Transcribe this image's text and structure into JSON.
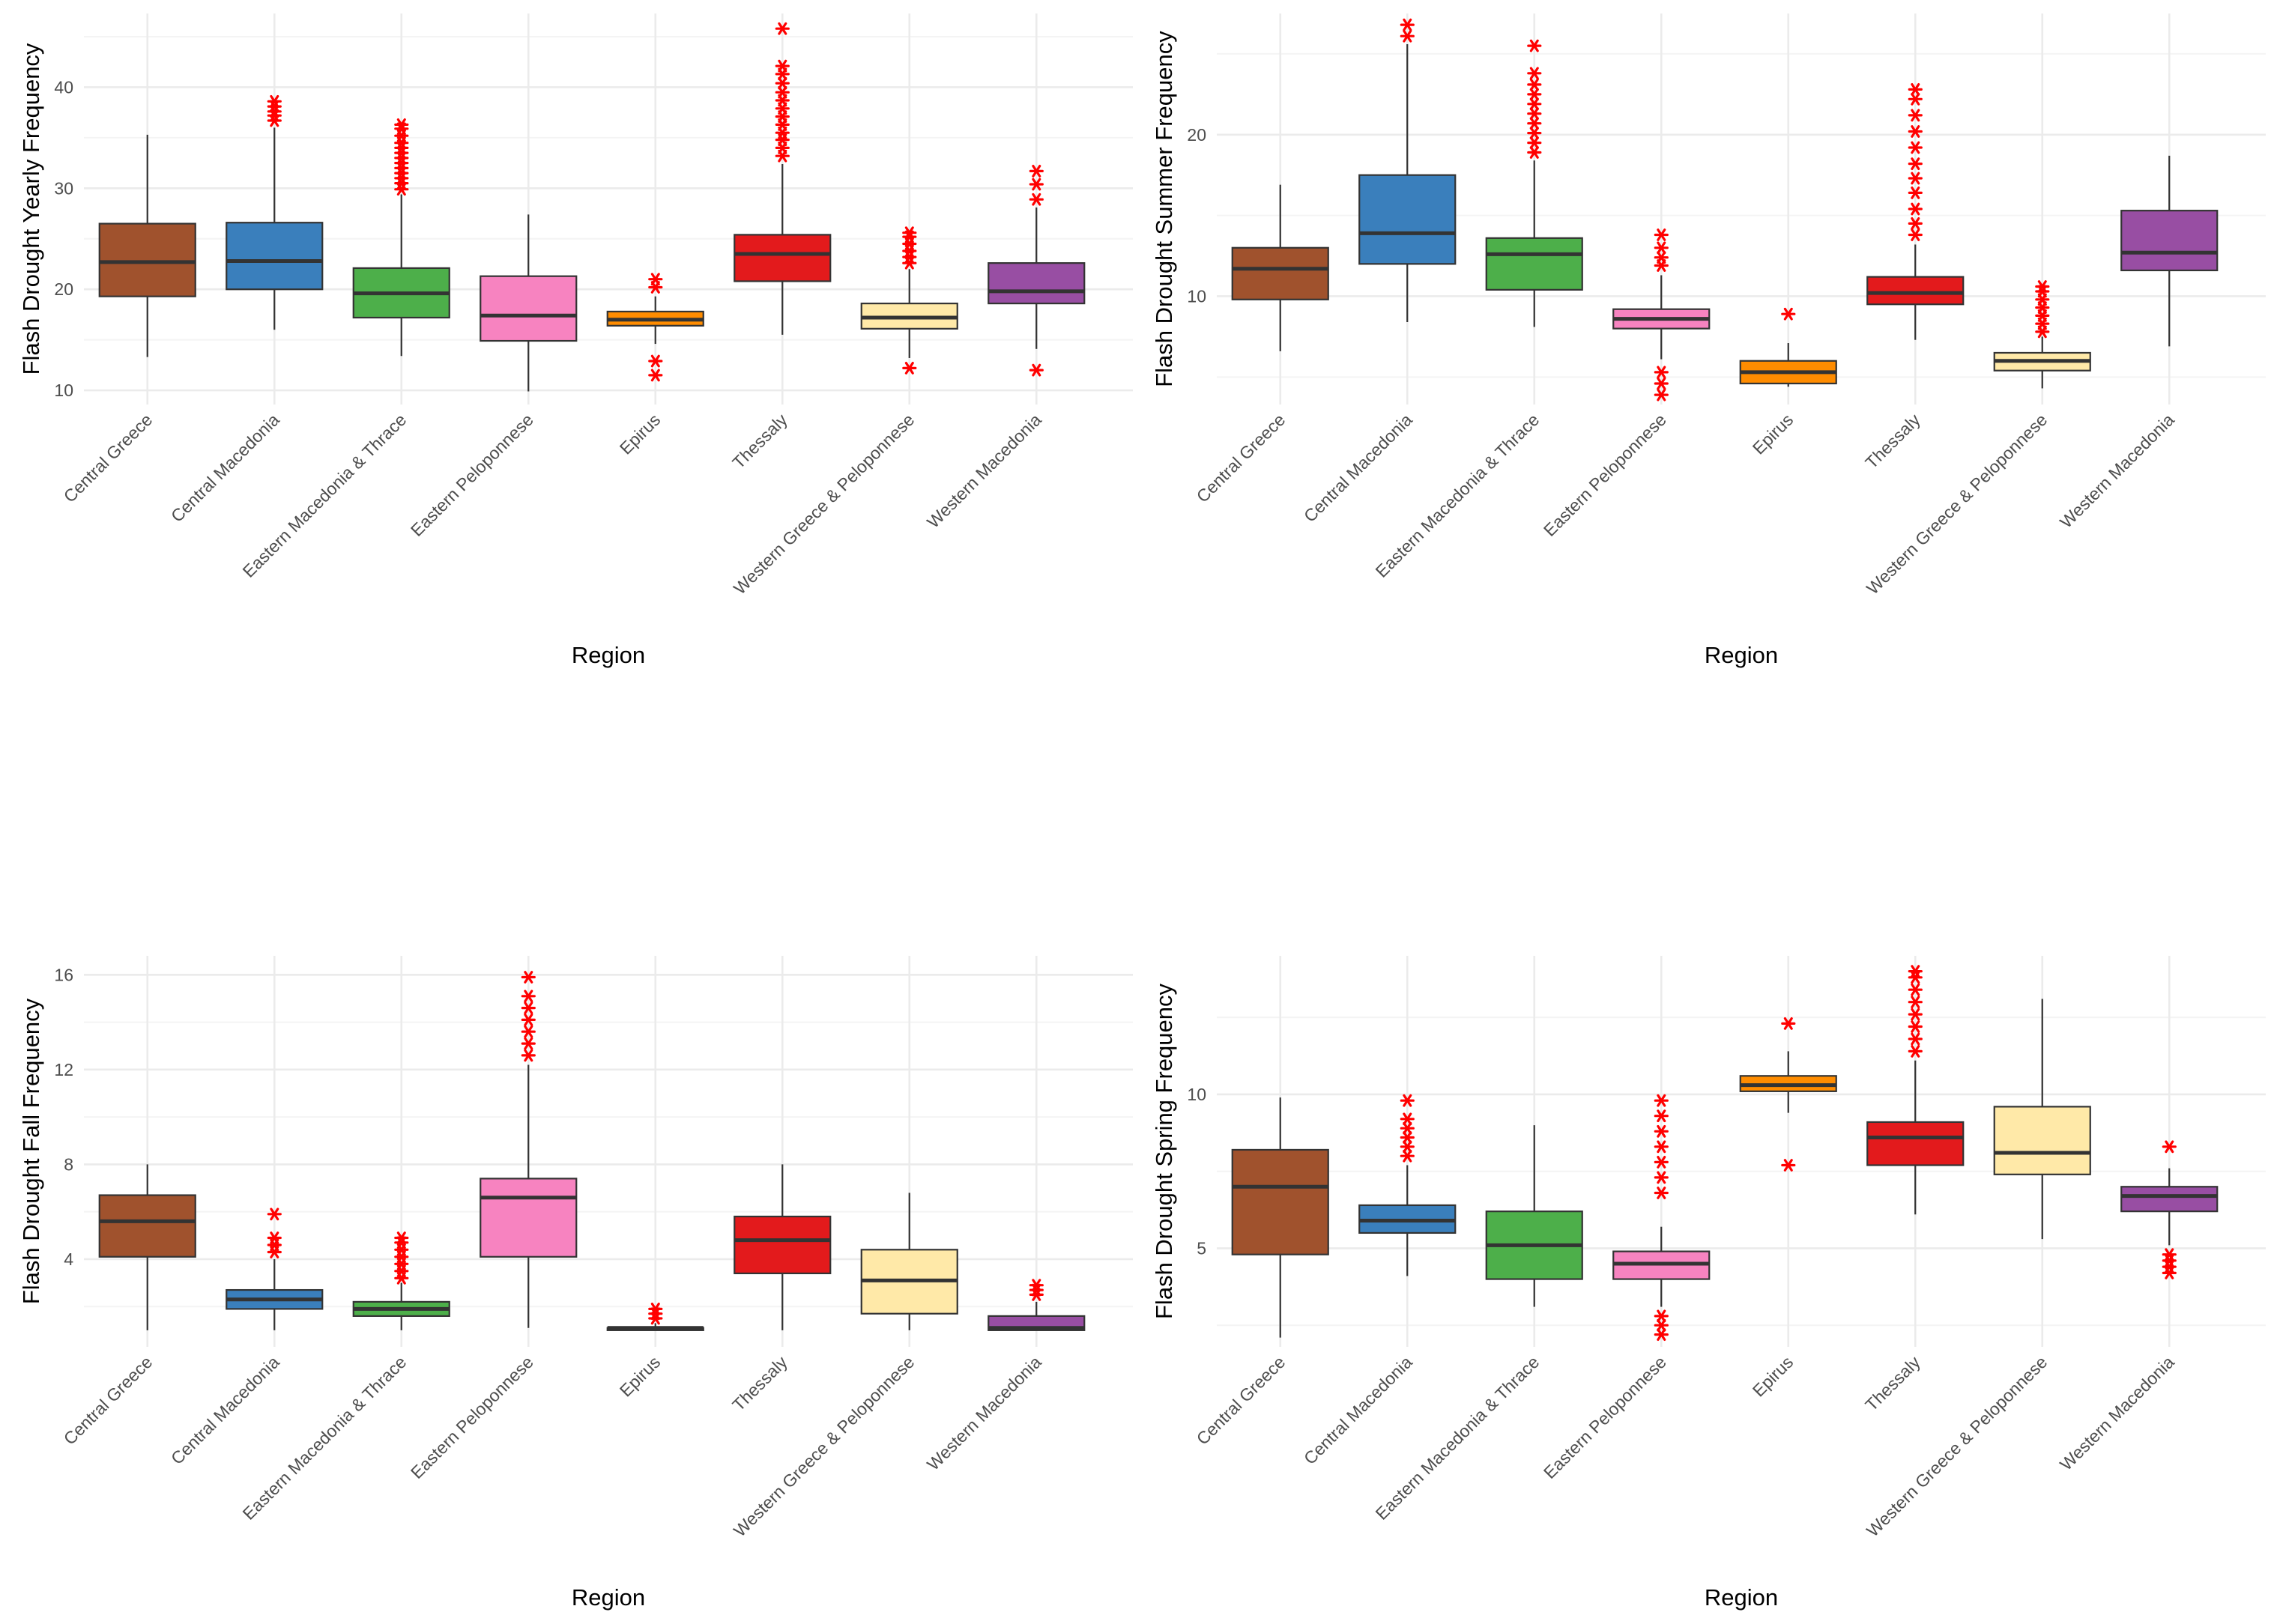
{
  "colors": {
    "outlier": "#ff0000",
    "grid_major": "#ebebeb",
    "grid_minor": "#f4f4f4",
    "box_line": "#333333",
    "fills": [
      "#a0522d",
      "#3a7fbc",
      "#4daf4a",
      "#f783c0",
      "#ff8c00",
      "#e31a1c",
      "#ffe9a8",
      "#984ea3"
    ]
  },
  "chart_data": [
    {
      "type": "box",
      "title": "",
      "xlabel": "Region",
      "ylabel": "Flash Drought Yearly Frequency",
      "ylim": [
        8.6,
        47.3
      ],
      "yticks": [
        10,
        20,
        30,
        40
      ],
      "tick_labels": [
        "10",
        "20",
        "30",
        "40"
      ],
      "categories": [
        "Central Greece",
        "Central Macedonia",
        "Eastern Macedonia & Thrace",
        "Eastern Peloponnese",
        "Epirus",
        "Thessaly",
        "Western Greece & Peloponnese",
        "Western Macedonia"
      ],
      "series": [
        {
          "name": "Central Greece",
          "whisker_low": 13.3,
          "q1": 19.3,
          "median": 22.7,
          "q3": 26.5,
          "whisker_high": 35.3,
          "outliers": []
        },
        {
          "name": "Central Macedonia",
          "whisker_low": 16,
          "q1": 20,
          "median": 22.8,
          "q3": 26.6,
          "whisker_high": 36,
          "outliers": [
            36.7,
            37.2,
            37.6,
            38.1,
            38.6
          ]
        },
        {
          "name": "Eastern Macedonia & Thrace",
          "whisker_low": 13.4,
          "q1": 17.2,
          "median": 19.6,
          "q3": 22.1,
          "whisker_high": 29.4,
          "outliers": [
            29.9,
            30.5,
            31,
            31.5,
            32,
            32.5,
            33,
            33.5,
            34,
            34.5,
            35.2,
            35.9,
            36.3
          ]
        },
        {
          "name": "Eastern Peloponnese",
          "whisker_low": 9.9,
          "q1": 14.9,
          "median": 17.4,
          "q3": 21.3,
          "whisker_high": 27.4,
          "outliers": []
        },
        {
          "name": "Epirus",
          "whisker_low": 14.6,
          "q1": 16.4,
          "median": 17,
          "q3": 17.8,
          "whisker_high": 19.3,
          "outliers": [
            11.5,
            12.9,
            20.2,
            21
          ]
        },
        {
          "name": "Thessaly",
          "whisker_low": 15.5,
          "q1": 20.8,
          "median": 23.5,
          "q3": 25.4,
          "whisker_high": 32.4,
          "outliers": [
            33.2,
            34,
            34.8,
            35.5,
            36.3,
            37.1,
            37.9,
            38.7,
            39.5,
            40.4,
            41.3,
            42.1,
            45.8
          ]
        },
        {
          "name": "Western Greece & Peloponnese",
          "whisker_low": 13.2,
          "q1": 16.1,
          "median": 17.2,
          "q3": 18.6,
          "whisker_high": 22,
          "outliers": [
            12.2,
            22.6,
            23.2,
            23.8,
            24.5,
            25.2,
            25.6
          ]
        },
        {
          "name": "Western Macedonia",
          "whisker_low": 14.1,
          "q1": 18.6,
          "median": 19.8,
          "q3": 22.6,
          "whisker_high": 28.1,
          "outliers": [
            12,
            28.9,
            30.4,
            31.7
          ]
        }
      ]
    },
    {
      "type": "box",
      "title": "",
      "xlabel": "Region",
      "ylabel": "Flash Drought Summer Frequency",
      "ylim": [
        3.3,
        27.5
      ],
      "yticks": [
        10,
        20
      ],
      "tick_labels": [
        "10",
        "20"
      ],
      "categories": [
        "Central Greece",
        "Central Macedonia",
        "Eastern Macedonia & Thrace",
        "Eastern Peloponnese",
        "Epirus",
        "Thessaly",
        "Western Greece & Peloponnese",
        "Western Macedonia"
      ],
      "series": [
        {
          "name": "Central Greece",
          "whisker_low": 6.6,
          "q1": 9.8,
          "median": 11.7,
          "q3": 13,
          "whisker_high": 16.9,
          "outliers": []
        },
        {
          "name": "Central Macedonia",
          "whisker_low": 8.4,
          "q1": 12,
          "median": 13.9,
          "q3": 17.5,
          "whisker_high": 25.6,
          "outliers": [
            26.1,
            26.8
          ]
        },
        {
          "name": "Eastern Macedonia & Thrace",
          "whisker_low": 8.1,
          "q1": 10.4,
          "median": 12.6,
          "q3": 13.6,
          "whisker_high": 18.4,
          "outliers": [
            18.9,
            19.5,
            20.1,
            20.7,
            21.3,
            21.9,
            22.5,
            23.1,
            23.8,
            25.5
          ]
        },
        {
          "name": "Eastern Peloponnese",
          "whisker_low": 6.1,
          "q1": 8,
          "median": 8.6,
          "q3": 9.2,
          "whisker_high": 11.3,
          "outliers": [
            3.9,
            4.6,
            5.3,
            11.9,
            12.4,
            13,
            13.8
          ]
        },
        {
          "name": "Epirus",
          "whisker_low": 4.4,
          "q1": 4.6,
          "median": 5.3,
          "q3": 6,
          "whisker_high": 7.1,
          "outliers": [
            8.9
          ]
        },
        {
          "name": "Thessaly",
          "whisker_low": 7.3,
          "q1": 9.5,
          "median": 10.2,
          "q3": 11.2,
          "whisker_high": 13.2,
          "outliers": [
            13.8,
            14.5,
            15.4,
            16.4,
            17.3,
            18.2,
            19.2,
            20.2,
            21.2,
            22.2,
            22.8
          ]
        },
        {
          "name": "Western Greece & Peloponnese",
          "whisker_low": 4.3,
          "q1": 5.4,
          "median": 6,
          "q3": 6.5,
          "whisker_high": 7.5,
          "outliers": [
            7.8,
            8.3,
            8.8,
            9.3,
            9.8,
            10.3,
            10.6
          ]
        },
        {
          "name": "Western Macedonia",
          "whisker_low": 6.9,
          "q1": 11.6,
          "median": 12.7,
          "q3": 15.3,
          "whisker_high": 18.7,
          "outliers": []
        }
      ]
    },
    {
      "type": "box",
      "title": "",
      "xlabel": "Region",
      "ylabel": "Flash Drought Fall Frequency",
      "ylim": [
        0.3,
        16.8
      ],
      "yticks": [
        4,
        8,
        12,
        16
      ],
      "tick_labels": [
        "4",
        "8",
        "12",
        "16"
      ],
      "categories": [
        "Central Greece",
        "Central Macedonia",
        "Eastern Macedonia & Thrace",
        "Eastern Peloponnese",
        "Epirus",
        "Thessaly",
        "Western Greece & Peloponnese",
        "Western Macedonia"
      ],
      "series": [
        {
          "name": "Central Greece",
          "whisker_low": 1,
          "q1": 4.1,
          "median": 5.6,
          "q3": 6.7,
          "whisker_high": 8,
          "outliers": []
        },
        {
          "name": "Central Macedonia",
          "whisker_low": 1,
          "q1": 1.9,
          "median": 2.3,
          "q3": 2.7,
          "whisker_high": 4,
          "outliers": [
            4.3,
            4.6,
            4.9,
            5.9
          ]
        },
        {
          "name": "Eastern Macedonia & Thrace",
          "whisker_low": 1,
          "q1": 1.6,
          "median": 1.9,
          "q3": 2.2,
          "whisker_high": 3,
          "outliers": [
            3.2,
            3.5,
            3.8,
            4.1,
            4.4,
            4.7,
            4.9
          ]
        },
        {
          "name": "Eastern Peloponnese",
          "whisker_low": 1.1,
          "q1": 4.1,
          "median": 6.6,
          "q3": 7.4,
          "whisker_high": 12.2,
          "outliers": [
            12.6,
            13.1,
            13.6,
            14.1,
            14.6,
            15.1,
            15.9
          ]
        },
        {
          "name": "Epirus",
          "whisker_low": 1,
          "q1": 1,
          "median": 1.1,
          "q3": 1.1,
          "whisker_high": 1.3,
          "outliers": [
            1.5,
            1.7,
            1.9
          ]
        },
        {
          "name": "Thessaly",
          "whisker_low": 1,
          "q1": 3.4,
          "median": 4.8,
          "q3": 5.8,
          "whisker_high": 8,
          "outliers": []
        },
        {
          "name": "Western Greece & Peloponnese",
          "whisker_low": 1,
          "q1": 1.7,
          "median": 3.1,
          "q3": 4.4,
          "whisker_high": 6.8,
          "outliers": []
        },
        {
          "name": "Western Macedonia",
          "whisker_low": 1,
          "q1": 1,
          "median": 1.1,
          "q3": 1.6,
          "whisker_high": 2.2,
          "outliers": [
            2.5,
            2.7,
            2.9
          ]
        }
      ]
    },
    {
      "type": "box",
      "title": "",
      "xlabel": "Region",
      "ylabel": "Flash Drought Spring Frequency",
      "ylim": [
        1.8,
        14.5
      ],
      "yticks": [
        5,
        10
      ],
      "tick_labels": [
        "5",
        "10"
      ],
      "categories": [
        "Central Greece",
        "Central Macedonia",
        "Eastern Macedonia & Thrace",
        "Eastern Peloponnese",
        "Epirus",
        "Thessaly",
        "Western Greece & Peloponnese",
        "Western Macedonia"
      ],
      "series": [
        {
          "name": "Central Greece",
          "whisker_low": 2.1,
          "q1": 4.8,
          "median": 7,
          "q3": 8.2,
          "whisker_high": 9.9,
          "outliers": []
        },
        {
          "name": "Central Macedonia",
          "whisker_low": 4.1,
          "q1": 5.5,
          "median": 5.9,
          "q3": 6.4,
          "whisker_high": 7.7,
          "outliers": [
            8,
            8.3,
            8.6,
            8.9,
            9.2,
            9.8
          ]
        },
        {
          "name": "Eastern Macedonia & Thrace",
          "whisker_low": 3.1,
          "q1": 4,
          "median": 5.1,
          "q3": 6.2,
          "whisker_high": 9,
          "outliers": []
        },
        {
          "name": "Eastern Peloponnese",
          "whisker_low": 3.1,
          "q1": 4,
          "median": 4.5,
          "q3": 4.9,
          "whisker_high": 5.7,
          "outliers": [
            2.2,
            2.5,
            2.8,
            6.8,
            7.3,
            7.8,
            8.3,
            8.8,
            9.3,
            9.8
          ]
        },
        {
          "name": "Epirus",
          "whisker_low": 9.4,
          "q1": 10.1,
          "median": 10.3,
          "q3": 10.6,
          "whisker_high": 11.4,
          "outliers": [
            7.7,
            12.3
          ]
        },
        {
          "name": "Thessaly",
          "whisker_low": 6.1,
          "q1": 7.7,
          "median": 8.6,
          "q3": 9.1,
          "whisker_high": 11.1,
          "outliers": [
            11.4,
            11.8,
            12.2,
            12.6,
            13,
            13.4,
            13.8,
            14
          ]
        },
        {
          "name": "Western Greece & Peloponnese",
          "whisker_low": 5.3,
          "q1": 7.4,
          "median": 8.1,
          "q3": 9.6,
          "whisker_high": 13.1,
          "outliers": []
        },
        {
          "name": "Western Macedonia",
          "whisker_low": 5.1,
          "q1": 6.2,
          "median": 6.7,
          "q3": 7,
          "whisker_high": 7.6,
          "outliers": [
            4.2,
            4.4,
            4.6,
            4.8,
            8.3
          ]
        }
      ]
    }
  ]
}
